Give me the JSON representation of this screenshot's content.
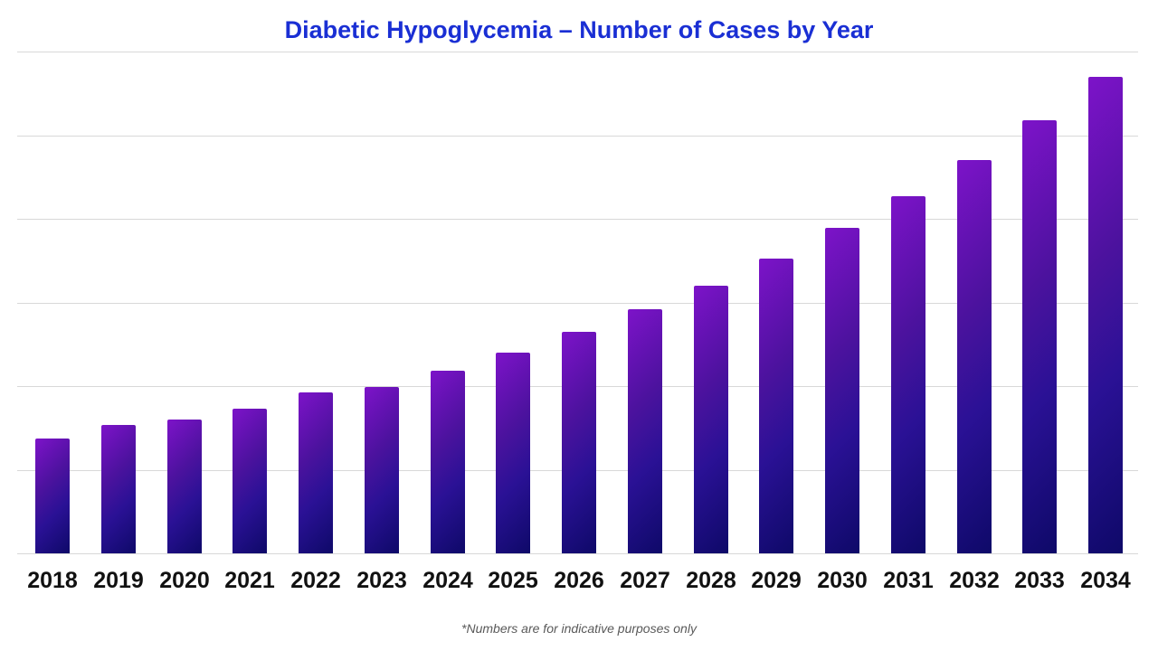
{
  "page": {
    "background": "#ffffff"
  },
  "title": {
    "text": "Diabetic Hypoglycemia – Number of Cases by Year",
    "color": "#1a2fd4"
  },
  "footnote": {
    "text": "*Numbers are for indicative purposes only",
    "color": "#595959"
  },
  "chart_data": {
    "type": "bar",
    "title": "Diabetic Hypoglycemia – Number of Cases by Year",
    "categories": [
      "2018",
      "2019",
      "2020",
      "2021",
      "2022",
      "2023",
      "2024",
      "2025",
      "2026",
      "2027",
      "2028",
      "2029",
      "2030",
      "2031",
      "2032",
      "2033",
      "2034"
    ],
    "values": [
      1370,
      1540,
      1600,
      1730,
      1920,
      1990,
      2180,
      2400,
      2650,
      2920,
      3200,
      3520,
      3890,
      4270,
      4700,
      5180,
      5700
    ],
    "xlabel": "",
    "ylabel": "",
    "ylim": [
      0,
      6000
    ],
    "y_axis_tick_labels_visible": false,
    "data_labels_visible": false,
    "legend_position": "none",
    "grid": {
      "horizontal_lines": 7,
      "color": "#d8d8d8"
    },
    "bar_style": {
      "gradient_direction_deg": 135,
      "gradient_colors": [
        "#7d13c9",
        "#4c129e",
        "#2a1195",
        "#0e0968"
      ],
      "tick_label_color": "#111111"
    },
    "annotations": [
      "*Numbers are for indicative purposes only"
    ]
  }
}
